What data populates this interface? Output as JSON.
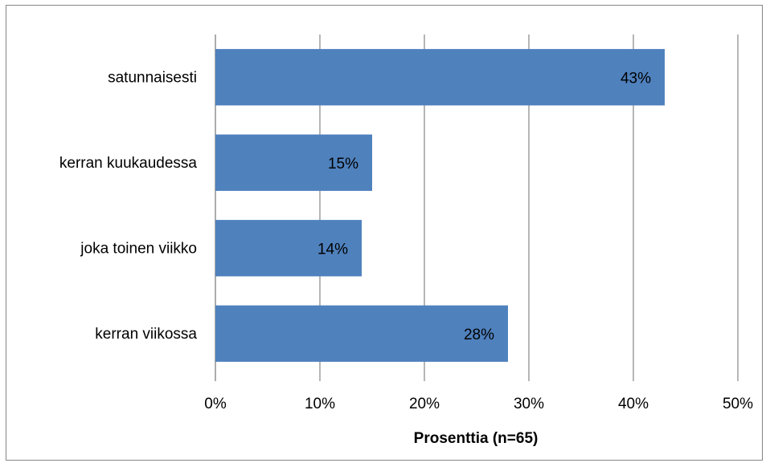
{
  "chart_data": {
    "type": "bar",
    "orientation": "horizontal",
    "categories": [
      "satunnaisesti",
      "kerran kuukaudessa",
      "joka toinen viikko",
      "kerran viikossa"
    ],
    "values": [
      43,
      15,
      14,
      28
    ],
    "value_labels": [
      "43%",
      "15%",
      "14%",
      "28%"
    ],
    "xlim": [
      0,
      50
    ],
    "xticks": [
      0,
      10,
      20,
      30,
      40,
      50
    ],
    "xtick_labels": [
      "0%",
      "10%",
      "20%",
      "30%",
      "40%",
      "50%"
    ],
    "xlabel": "Prosenttia (n=65)",
    "ylabel": "",
    "title": "",
    "grid": true,
    "legend": "none",
    "bar_color": "#4F81BD",
    "grid_color": "#868686"
  }
}
